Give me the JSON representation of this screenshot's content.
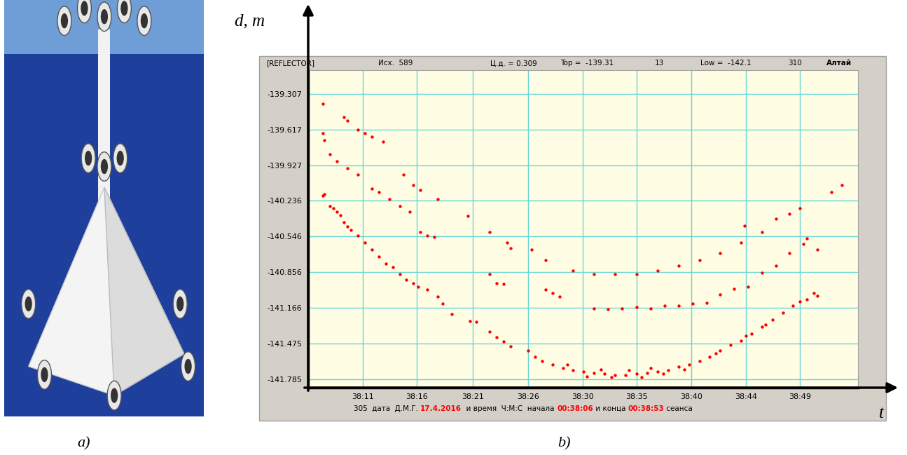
{
  "panel_labels": [
    "a)",
    "b)"
  ],
  "header": [
    "[REFLECTOR]",
    "Исх.  589",
    "Ц.д. = 0.309",
    "Top =  -139.31",
    "13",
    "Low =  -142.1",
    "310",
    "Алтай"
  ],
  "footer": [
    {
      "text": "305  дата  Д.М.Г. ",
      "color": "#000000"
    },
    {
      "text": "17.4.2016",
      "color": "#ff0000"
    },
    {
      "text": "  и время  Ч:М:С  начала ",
      "color": "#000000"
    },
    {
      "text": "00:38:06",
      "color": "#ff0000"
    },
    {
      "text": " и конца ",
      "color": "#000000"
    },
    {
      "text": "00:38:53",
      "color": "#ff0000"
    },
    {
      "text": " сеанса",
      "color": "#000000"
    }
  ],
  "chart_data": {
    "type": "scatter",
    "x_label": "t",
    "y_label": "d, m",
    "xlim": [
      6.5,
      54.0
    ],
    "ylim": [
      -141.86,
      -139.1
    ],
    "xticks": [
      {
        "value": 11.2,
        "label": "38:11"
      },
      {
        "value": 15.9,
        "label": "38:16"
      },
      {
        "value": 20.7,
        "label": "38:21"
      },
      {
        "value": 25.5,
        "label": "38:26"
      },
      {
        "value": 30.2,
        "label": "38:30"
      },
      {
        "value": 34.9,
        "label": "38:35"
      },
      {
        "value": 39.6,
        "label": "38:40"
      },
      {
        "value": 44.3,
        "label": "38:44"
      },
      {
        "value": 49.0,
        "label": "38:49"
      }
    ],
    "yticks": [
      -139.307,
      -139.617,
      -139.927,
      -140.236,
      -140.546,
      -140.856,
      -141.166,
      -141.475,
      -141.785
    ],
    "grid": true,
    "series": [
      {
        "color": "#ff0000",
        "marker": "o",
        "x": [
          7.8,
          7.9,
          8.4,
          8.7,
          9.0,
          9.3,
          9.6,
          9.9,
          10.2,
          10.8,
          11.4,
          12.0,
          12.6,
          13.2,
          13.8,
          14.4,
          15.0,
          15.6,
          16.0,
          16.8,
          17.7,
          18.1,
          18.9,
          20.5,
          21.0,
          22.2,
          22.8,
          23.4,
          24.0,
          25.5,
          26.1,
          26.7,
          27.6,
          28.5,
          29.4,
          30.3,
          31.2,
          32.1,
          33.0,
          33.9,
          34.9,
          35.8,
          36.7,
          37.6,
          38.5,
          39.4,
          40.3,
          41.2,
          42.1,
          43.0,
          43.9,
          44.8,
          45.7,
          46.6,
          47.5,
          48.4,
          49.0,
          49.6,
          50.2,
          50.5,
          30.6,
          31.8,
          32.7,
          34.2,
          35.3,
          36.1,
          28.9,
          37.2,
          39.0,
          41.7,
          44.3,
          46.0
        ],
        "values": [
          -140.19,
          -140.18,
          -140.28,
          -140.3,
          -140.33,
          -140.36,
          -140.42,
          -140.46,
          -140.49,
          -140.54,
          -140.6,
          -140.66,
          -140.72,
          -140.78,
          -140.81,
          -140.87,
          -140.92,
          -140.95,
          -140.98,
          -141.01,
          -141.07,
          -141.13,
          -141.22,
          -141.28,
          -141.29,
          -141.37,
          -141.42,
          -141.46,
          -141.5,
          -141.54,
          -141.59,
          -141.63,
          -141.66,
          -141.69,
          -141.71,
          -141.72,
          -141.73,
          -141.74,
          -141.75,
          -141.75,
          -141.74,
          -141.73,
          -141.72,
          -141.71,
          -141.68,
          -141.66,
          -141.63,
          -141.59,
          -141.54,
          -141.49,
          -141.45,
          -141.39,
          -141.33,
          -141.27,
          -141.21,
          -141.15,
          -141.11,
          -141.09,
          -141.04,
          -141.06,
          -141.76,
          -141.7,
          -141.77,
          -141.71,
          -141.77,
          -141.69,
          -141.66,
          -141.74,
          -141.7,
          -141.56,
          -141.41,
          -141.31
        ]
      },
      {
        "color": "#ff0000",
        "marker": "o",
        "x": [
          7.8,
          9.6,
          9.9,
          10.8,
          11.4,
          12.0,
          13.0,
          14.7,
          15.6,
          16.2,
          17.7,
          20.3,
          22.2,
          23.7,
          24.0,
          25.8,
          27.0,
          29.4,
          31.2,
          33.0,
          34.9,
          36.7,
          38.5,
          40.3,
          42.1,
          43.9,
          44.2,
          45.7,
          46.9,
          48.1,
          49.0,
          51.7,
          52.6
        ],
        "values": [
          -139.39,
          -139.51,
          -139.54,
          -139.62,
          -139.65,
          -139.68,
          -139.72,
          -140.01,
          -140.1,
          -140.14,
          -140.22,
          -140.37,
          -140.51,
          -140.6,
          -140.65,
          -140.66,
          -140.75,
          -140.84,
          -140.87,
          -140.87,
          -140.87,
          -140.84,
          -140.8,
          -140.75,
          -140.69,
          -140.6,
          -140.45,
          -140.51,
          -140.39,
          -140.35,
          -140.3,
          -140.16,
          -140.1
        ]
      },
      {
        "color": "#ff0000",
        "marker": "o",
        "x": [
          7.8,
          7.9,
          8.4,
          9.0,
          9.9,
          10.8,
          12.0,
          12.6,
          13.5,
          14.4,
          15.3,
          16.2,
          16.8,
          17.4,
          22.2,
          22.8,
          23.4,
          27.0,
          27.6,
          28.2,
          31.2,
          32.4,
          33.6,
          34.9,
          36.1,
          37.3,
          38.5,
          39.7,
          40.9,
          42.1,
          43.3,
          44.5,
          45.7,
          46.9,
          48.1,
          49.3,
          49.6,
          50.5
        ],
        "values": [
          -139.65,
          -139.71,
          -139.83,
          -139.89,
          -139.95,
          -140.01,
          -140.13,
          -140.16,
          -140.22,
          -140.28,
          -140.33,
          -140.51,
          -140.54,
          -140.55,
          -140.87,
          -140.95,
          -140.96,
          -141.01,
          -141.04,
          -141.07,
          -141.17,
          -141.18,
          -141.17,
          -141.16,
          -141.17,
          -141.15,
          -141.15,
          -141.13,
          -141.12,
          -141.05,
          -141.0,
          -140.98,
          -140.86,
          -140.8,
          -140.69,
          -140.61,
          -140.56,
          -140.66
        ]
      }
    ]
  }
}
